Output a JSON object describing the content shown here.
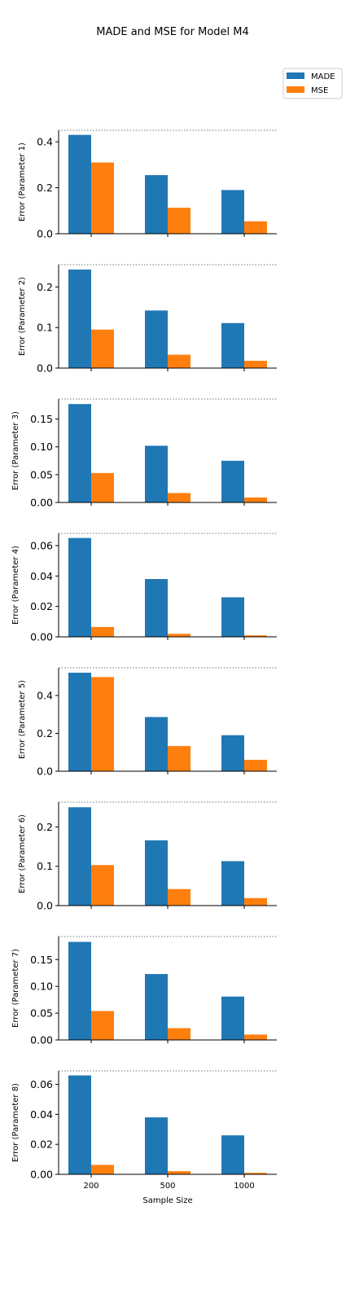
{
  "figure": {
    "title": "MADE and MSE for Model M4",
    "xlabel": "Sample Size",
    "legend": {
      "placement": "top-right",
      "entries": [
        "MADE",
        "MSE"
      ]
    }
  },
  "colors": {
    "MADE": "#1f77b4",
    "MSE": "#ff7f0e",
    "axis": "#000000",
    "dotted_ref": "#777777"
  },
  "chart_data": [
    {
      "type": "bar",
      "ylabel": "Error (Parameter 1)",
      "categories": [
        "200",
        "500",
        "1000"
      ],
      "ylim": [
        0,
        0.45
      ],
      "yticks": [
        "0.0",
        "0.2",
        "0.4"
      ],
      "ytick_values": [
        0,
        0.2,
        0.4
      ],
      "series": [
        {
          "name": "MADE",
          "values": [
            0.43,
            0.255,
            0.19
          ]
        },
        {
          "name": "MSE",
          "values": [
            0.31,
            0.113,
            0.054
          ]
        }
      ]
    },
    {
      "type": "bar",
      "ylabel": "Error (Parameter 2)",
      "categories": [
        "200",
        "500",
        "1000"
      ],
      "ylim": [
        0,
        0.255
      ],
      "yticks": [
        "0.0",
        "0.1",
        "0.2"
      ],
      "ytick_values": [
        0,
        0.1,
        0.2
      ],
      "series": [
        {
          "name": "MADE",
          "values": [
            0.243,
            0.142,
            0.111
          ]
        },
        {
          "name": "MSE",
          "values": [
            0.095,
            0.033,
            0.018
          ]
        }
      ]
    },
    {
      "type": "bar",
      "ylabel": "Error (Parameter 3)",
      "categories": [
        "200",
        "500",
        "1000"
      ],
      "ylim": [
        0,
        0.186
      ],
      "yticks": [
        "0.00",
        "0.05",
        "0.10",
        "0.15"
      ],
      "ytick_values": [
        0,
        0.05,
        0.1,
        0.15
      ],
      "series": [
        {
          "name": "MADE",
          "values": [
            0.177,
            0.102,
            0.075
          ]
        },
        {
          "name": "MSE",
          "values": [
            0.053,
            0.017,
            0.009
          ]
        }
      ]
    },
    {
      "type": "bar",
      "ylabel": "Error (Parameter 4)",
      "categories": [
        "200",
        "500",
        "1000"
      ],
      "ylim": [
        0,
        0.068
      ],
      "yticks": [
        "0.00",
        "0.02",
        "0.04",
        "0.06"
      ],
      "ytick_values": [
        0,
        0.02,
        0.04,
        0.06
      ],
      "series": [
        {
          "name": "MADE",
          "values": [
            0.065,
            0.038,
            0.026
          ]
        },
        {
          "name": "MSE",
          "values": [
            0.0065,
            0.002,
            0.001
          ]
        }
      ]
    },
    {
      "type": "bar",
      "ylabel": "Error (Parameter 5)",
      "categories": [
        "200",
        "500",
        "1000"
      ],
      "ylim": [
        0,
        0.546
      ],
      "yticks": [
        "0.0",
        "0.2",
        "0.4"
      ],
      "ytick_values": [
        0,
        0.2,
        0.4
      ],
      "series": [
        {
          "name": "MADE",
          "values": [
            0.52,
            0.286,
            0.19
          ]
        },
        {
          "name": "MSE",
          "values": [
            0.497,
            0.133,
            0.06
          ]
        }
      ]
    },
    {
      "type": "bar",
      "ylabel": "Error (Parameter 6)",
      "categories": [
        "200",
        "500",
        "1000"
      ],
      "ylim": [
        0,
        0.263
      ],
      "yticks": [
        "0.0",
        "0.1",
        "0.2"
      ],
      "ytick_values": [
        0,
        0.1,
        0.2
      ],
      "series": [
        {
          "name": "MADE",
          "values": [
            0.25,
            0.166,
            0.113
          ]
        },
        {
          "name": "MSE",
          "values": [
            0.103,
            0.042,
            0.019
          ]
        }
      ]
    },
    {
      "type": "bar",
      "ylabel": "Error (Parameter 7)",
      "categories": [
        "200",
        "500",
        "1000"
      ],
      "ylim": [
        0,
        0.193
      ],
      "yticks": [
        "0.00",
        "0.05",
        "0.10",
        "0.15"
      ],
      "ytick_values": [
        0,
        0.05,
        0.1,
        0.15
      ],
      "series": [
        {
          "name": "MADE",
          "values": [
            0.183,
            0.123,
            0.081
          ]
        },
        {
          "name": "MSE",
          "values": [
            0.054,
            0.022,
            0.01
          ]
        }
      ]
    },
    {
      "type": "bar",
      "ylabel": "Error (Parameter 8)",
      "categories": [
        "200",
        "500",
        "1000"
      ],
      "ylim": [
        0,
        0.069
      ],
      "yticks": [
        "0.00",
        "0.02",
        "0.04",
        "0.06"
      ],
      "ytick_values": [
        0,
        0.02,
        0.04,
        0.06
      ],
      "series": [
        {
          "name": "MADE",
          "values": [
            0.066,
            0.038,
            0.026
          ]
        },
        {
          "name": "MSE",
          "values": [
            0.0063,
            0.0021,
            0.001
          ]
        }
      ]
    }
  ]
}
